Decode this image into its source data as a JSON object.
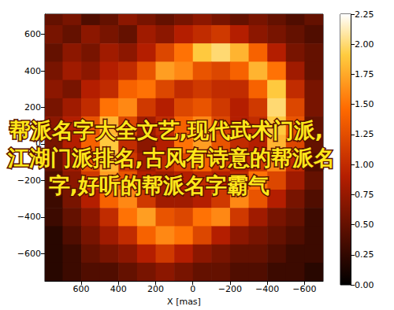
{
  "chart_data": {
    "type": "heatmap",
    "xlabel": "X [mas]",
    "xlim": [
      795,
      -700
    ],
    "ylim": [
      -750,
      710
    ],
    "xticks": [
      600,
      400,
      200,
      0,
      {
        "value": -200,
        "label": "−200"
      },
      {
        "value": -400,
        "label": "−400"
      },
      {
        "value": -600,
        "label": "−600"
      }
    ],
    "yticks": [
      {
        "value": -600,
        "label": "−600"
      },
      {
        "value": -400,
        "label": "−400"
      },
      {
        "value": -200,
        "label": "−200"
      },
      0,
      200,
      400,
      600
    ],
    "x_centers": [
      750,
      650,
      550,
      450,
      350,
      250,
      150,
      50,
      -50,
      -150,
      -250,
      -350,
      -450,
      -550,
      -650
    ],
    "y_centers": [
      700,
      600,
      500,
      400,
      300,
      200,
      100,
      0,
      -100,
      -200,
      -300,
      -400,
      -500,
      -600,
      -700
    ],
    "cells": [
      [
        0.5,
        0.6,
        0.4,
        0.5,
        0.7,
        0.6,
        0.5,
        0.6,
        0.7,
        0.6,
        0.5,
        0.6,
        0.5,
        0.4,
        0.5
      ],
      [
        0.6,
        0.5,
        0.7,
        0.6,
        0.5,
        0.8,
        0.7,
        0.9,
        1.0,
        1.1,
        0.9,
        0.7,
        0.6,
        0.5,
        0.4
      ],
      [
        0.5,
        0.7,
        0.6,
        0.8,
        0.7,
        0.9,
        1.2,
        1.5,
        1.9,
        2.0,
        1.8,
        1.4,
        0.9,
        0.6,
        0.5
      ],
      [
        0.6,
        0.8,
        0.7,
        0.9,
        1.0,
        1.3,
        1.7,
        1.6,
        1.3,
        1.2,
        1.4,
        1.8,
        1.5,
        0.8,
        0.5
      ],
      [
        0.7,
        0.6,
        0.9,
        1.0,
        1.4,
        1.5,
        1.2,
        1.0,
        1.1,
        1.0,
        1.0,
        1.4,
        1.9,
        1.0,
        0.6
      ],
      [
        0.6,
        0.8,
        1.0,
        1.5,
        1.6,
        1.1,
        0.9,
        1.2,
        1.3,
        1.1,
        0.9,
        1.1,
        2.0,
        1.2,
        0.6
      ],
      [
        0.7,
        0.9,
        1.3,
        1.8,
        1.2,
        0.8,
        1.0,
        1.4,
        1.6,
        1.2,
        0.9,
        1.0,
        1.9,
        1.3,
        0.5
      ],
      [
        0.6,
        0.9,
        1.4,
        1.9,
        1.0,
        0.7,
        0.9,
        1.5,
        1.7,
        1.3,
        1.0,
        0.9,
        1.8,
        1.2,
        0.5
      ],
      [
        0.5,
        0.8,
        1.3,
        1.8,
        1.1,
        0.8,
        1.0,
        1.2,
        1.4,
        1.1,
        0.9,
        1.1,
        1.6,
        1.0,
        0.4
      ],
      [
        0.4,
        0.7,
        1.1,
        1.7,
        1.3,
        0.9,
        0.8,
        0.9,
        1.0,
        0.9,
        1.0,
        1.5,
        1.2,
        0.8,
        0.5
      ],
      [
        0.3,
        0.6,
        0.9,
        1.4,
        1.6,
        1.1,
        0.8,
        0.8,
        0.9,
        1.1,
        1.6,
        1.3,
        0.9,
        0.6,
        0.4
      ],
      [
        0.3,
        0.5,
        0.7,
        1.0,
        1.5,
        1.7,
        1.3,
        1.2,
        1.5,
        1.6,
        1.1,
        0.8,
        0.6,
        0.5,
        0.3
      ],
      [
        0.2,
        0.4,
        0.6,
        0.8,
        1.0,
        1.4,
        1.6,
        1.5,
        1.2,
        0.9,
        0.7,
        0.6,
        0.5,
        0.4,
        0.3
      ],
      [
        0.2,
        0.3,
        0.5,
        0.6,
        0.7,
        0.9,
        1.1,
        0.9,
        0.7,
        0.6,
        0.5,
        0.5,
        0.4,
        0.3,
        0.3
      ],
      [
        0.2,
        0.3,
        0.4,
        0.4,
        0.5,
        0.6,
        0.7,
        0.6,
        0.5,
        0.5,
        0.4,
        0.4,
        0.3,
        0.3,
        0.2
      ]
    ],
    "color_range": [
      0,
      2.25
    ],
    "color_ticks": [
      {
        "value": 0,
        "label": "0.00"
      },
      {
        "value": 0.25,
        "label": "0.25"
      },
      {
        "value": 0.5,
        "label": "0.50"
      },
      {
        "value": 0.75,
        "label": "0.75"
      },
      {
        "value": 1,
        "label": "1.00"
      },
      {
        "value": 1.25,
        "label": "1.25"
      },
      {
        "value": 1.5,
        "label": "1.50"
      },
      {
        "value": 1.75,
        "label": "1.75"
      },
      {
        "value": 2,
        "label": "2.00"
      },
      {
        "value": 2.25,
        "label": "2.25"
      }
    ],
    "overlay_text": [
      "帮派名字大全文艺,现代武术门派,",
      "江湖门派排名,古风有诗意的帮派名",
      "字,好听的帮派名字霸气"
    ]
  }
}
